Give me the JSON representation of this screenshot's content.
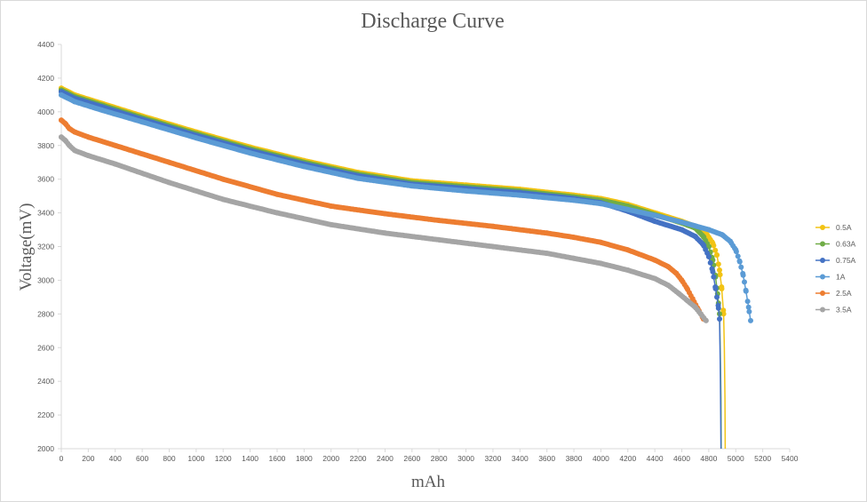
{
  "chart_data": {
    "type": "line",
    "title": "Discharge Curve",
    "xlabel": "mAh",
    "ylabel": "Voltage(mV)",
    "xlim": [
      0,
      5400
    ],
    "ylim": [
      2000,
      4400
    ],
    "x_ticks": [
      0,
      200,
      400,
      600,
      800,
      1000,
      1200,
      1400,
      1600,
      1800,
      2000,
      2200,
      2400,
      2600,
      2800,
      3000,
      3200,
      3400,
      3600,
      3800,
      4000,
      4200,
      4400,
      4600,
      4800,
      5000,
      5200,
      5400
    ],
    "x_tick_labels": [
      "0",
      "200",
      "400",
      "600",
      "800",
      "1000",
      "1200",
      "1400",
      "1600",
      "1800",
      "2000",
      "2200",
      "2400",
      "2600",
      "2800",
      "3000",
      "3200",
      "3400",
      "3600",
      "3800",
      "4000",
      "4200",
      "4400",
      "4600",
      "4800",
      "5000",
      "5200",
      "5400"
    ],
    "y_ticks": [
      2000,
      2200,
      2400,
      2600,
      2800,
      3000,
      3200,
      3400,
      3600,
      3800,
      4000,
      4200,
      4400
    ],
    "y_tick_labels": [
      "2000",
      "2200",
      "2400",
      "2600",
      "2800",
      "3000",
      "3200",
      "3400",
      "3600",
      "3800",
      "4000",
      "4200",
      "4400"
    ],
    "grid": false,
    "legend_position": "right",
    "series": [
      {
        "name": "0.5A",
        "color": "#f2c314",
        "points": [
          [
            0,
            4140
          ],
          [
            100,
            4100
          ],
          [
            300,
            4050
          ],
          [
            600,
            3975
          ],
          [
            1000,
            3880
          ],
          [
            1400,
            3790
          ],
          [
            1800,
            3710
          ],
          [
            2200,
            3640
          ],
          [
            2600,
            3590
          ],
          [
            3000,
            3565
          ],
          [
            3400,
            3540
          ],
          [
            3800,
            3505
          ],
          [
            4000,
            3485
          ],
          [
            4200,
            3450
          ],
          [
            4400,
            3400
          ],
          [
            4600,
            3350
          ],
          [
            4700,
            3320
          ],
          [
            4780,
            3280
          ],
          [
            4830,
            3220
          ],
          [
            4860,
            3150
          ],
          [
            4880,
            3060
          ],
          [
            4895,
            2960
          ],
          [
            4910,
            2800
          ],
          [
            4915,
            2600
          ],
          [
            4920,
            2300
          ],
          [
            4922,
            2000
          ]
        ],
        "marker_until": 4910
      },
      {
        "name": "0.63A",
        "color": "#70ad47",
        "points": [
          [
            0,
            4130
          ],
          [
            100,
            4090
          ],
          [
            300,
            4040
          ],
          [
            600,
            3965
          ],
          [
            1000,
            3870
          ],
          [
            1400,
            3780
          ],
          [
            1800,
            3700
          ],
          [
            2200,
            3630
          ],
          [
            2600,
            3580
          ],
          [
            3000,
            3555
          ],
          [
            3400,
            3530
          ],
          [
            3800,
            3495
          ],
          [
            4000,
            3475
          ],
          [
            4200,
            3440
          ],
          [
            4400,
            3390
          ],
          [
            4600,
            3340
          ],
          [
            4700,
            3310
          ],
          [
            4760,
            3260
          ],
          [
            4800,
            3200
          ],
          [
            4830,
            3120
          ],
          [
            4850,
            3020
          ],
          [
            4865,
            2920
          ],
          [
            4880,
            2800
          ],
          [
            4885,
            2600
          ],
          [
            4890,
            2300
          ],
          [
            4892,
            2000
          ]
        ],
        "marker_until": 4880
      },
      {
        "name": "0.75A",
        "color": "#4472c4",
        "points": [
          [
            0,
            4120
          ],
          [
            100,
            4080
          ],
          [
            300,
            4030
          ],
          [
            600,
            3955
          ],
          [
            1000,
            3860
          ],
          [
            1400,
            3770
          ],
          [
            1800,
            3690
          ],
          [
            2200,
            3620
          ],
          [
            2600,
            3570
          ],
          [
            3000,
            3545
          ],
          [
            3400,
            3520
          ],
          [
            3800,
            3485
          ],
          [
            4000,
            3460
          ],
          [
            4200,
            3410
          ],
          [
            4400,
            3350
          ],
          [
            4600,
            3300
          ],
          [
            4700,
            3260
          ],
          [
            4760,
            3210
          ],
          [
            4800,
            3140
          ],
          [
            4830,
            3050
          ],
          [
            4850,
            2950
          ],
          [
            4870,
            2850
          ],
          [
            4880,
            2770
          ],
          [
            4885,
            2500
          ],
          [
            4888,
            2200
          ],
          [
            4890,
            2000
          ]
        ],
        "marker_until": 4880
      },
      {
        "name": "1A",
        "color": "#5b9bd5",
        "points": [
          [
            0,
            4100
          ],
          [
            100,
            4060
          ],
          [
            300,
            4010
          ],
          [
            600,
            3940
          ],
          [
            1000,
            3845
          ],
          [
            1400,
            3755
          ],
          [
            1800,
            3675
          ],
          [
            2200,
            3605
          ],
          [
            2600,
            3560
          ],
          [
            3000,
            3530
          ],
          [
            3400,
            3505
          ],
          [
            3800,
            3475
          ],
          [
            4000,
            3455
          ],
          [
            4200,
            3420
          ],
          [
            4400,
            3385
          ],
          [
            4600,
            3345
          ],
          [
            4800,
            3300
          ],
          [
            4900,
            3270
          ],
          [
            4960,
            3230
          ],
          [
            5000,
            3180
          ],
          [
            5030,
            3110
          ],
          [
            5055,
            3030
          ],
          [
            5075,
            2940
          ],
          [
            5095,
            2840
          ],
          [
            5110,
            2760
          ]
        ],
        "marker_until": 5110
      },
      {
        "name": "2.5A",
        "color": "#ed7d31",
        "points": [
          [
            0,
            3950
          ],
          [
            30,
            3930
          ],
          [
            60,
            3900
          ],
          [
            100,
            3880
          ],
          [
            200,
            3850
          ],
          [
            400,
            3800
          ],
          [
            800,
            3700
          ],
          [
            1200,
            3600
          ],
          [
            1600,
            3510
          ],
          [
            2000,
            3440
          ],
          [
            2400,
            3395
          ],
          [
            2800,
            3355
          ],
          [
            3200,
            3320
          ],
          [
            3600,
            3280
          ],
          [
            3800,
            3255
          ],
          [
            4000,
            3225
          ],
          [
            4200,
            3180
          ],
          [
            4400,
            3120
          ],
          [
            4500,
            3080
          ],
          [
            4560,
            3040
          ],
          [
            4600,
            3000
          ],
          [
            4640,
            2950
          ],
          [
            4680,
            2890
          ],
          [
            4720,
            2830
          ],
          [
            4760,
            2770
          ]
        ],
        "marker_until": 4760
      },
      {
        "name": "3.5A",
        "color": "#a5a5a5",
        "points": [
          [
            0,
            3850
          ],
          [
            30,
            3830
          ],
          [
            60,
            3800
          ],
          [
            100,
            3770
          ],
          [
            200,
            3740
          ],
          [
            400,
            3690
          ],
          [
            800,
            3580
          ],
          [
            1200,
            3480
          ],
          [
            1600,
            3400
          ],
          [
            2000,
            3330
          ],
          [
            2400,
            3280
          ],
          [
            2800,
            3240
          ],
          [
            3200,
            3200
          ],
          [
            3600,
            3160
          ],
          [
            3800,
            3130
          ],
          [
            4000,
            3100
          ],
          [
            4200,
            3060
          ],
          [
            4400,
            3010
          ],
          [
            4500,
            2970
          ],
          [
            4580,
            2920
          ],
          [
            4640,
            2880
          ],
          [
            4700,
            2840
          ],
          [
            4740,
            2800
          ],
          [
            4780,
            2760
          ]
        ],
        "marker_until": 4780
      }
    ]
  }
}
